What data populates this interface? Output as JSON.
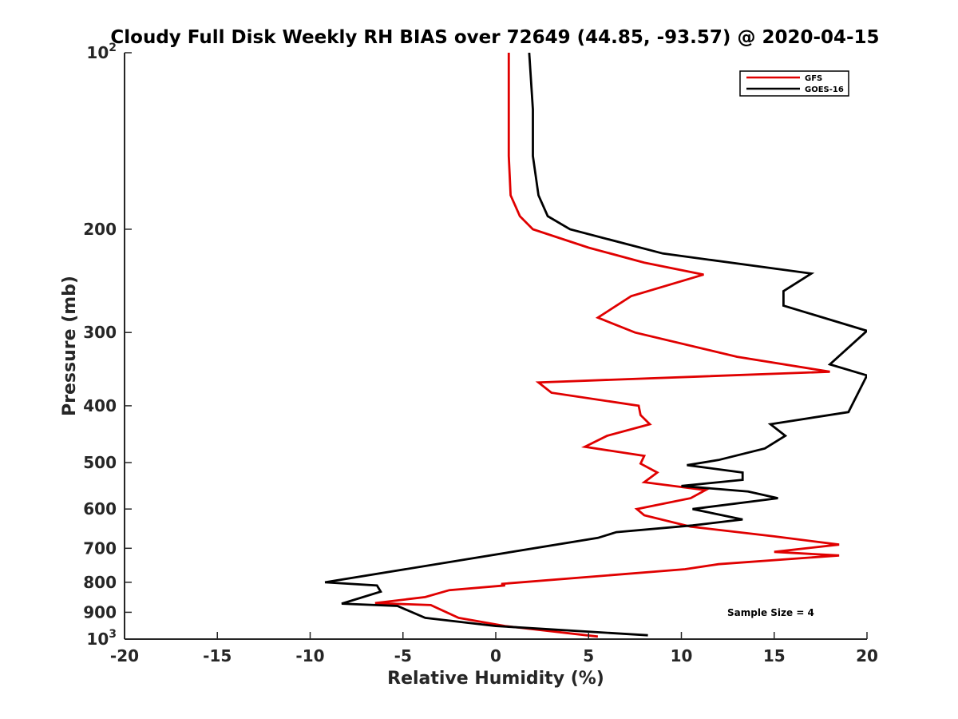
{
  "chart_data": {
    "type": "line",
    "title": "Cloudy Full Disk Weekly RH BIAS over 72649 (44.85, -93.57) @ 2020-04-15",
    "xlabel": "Relative Humidity (%)",
    "ylabel": "Pressure (mb)",
    "xlim": [
      -20,
      20
    ],
    "ylim": [
      100,
      1000
    ],
    "yscale": "log",
    "y_reversed": true,
    "x_ticks": [
      "-20",
      "-15",
      "-10",
      "-5",
      "0",
      "5",
      "10",
      "15",
      "20"
    ],
    "y_ticks": [
      {
        "value": 100,
        "base": "10",
        "exp": "2"
      },
      {
        "value": 200,
        "label": "200"
      },
      {
        "value": 300,
        "label": "300"
      },
      {
        "value": 400,
        "label": "400"
      },
      {
        "value": 500,
        "label": "500"
      },
      {
        "value": 600,
        "label": "600"
      },
      {
        "value": 700,
        "label": "700"
      },
      {
        "value": 800,
        "label": "800"
      },
      {
        "value": 900,
        "label": "900"
      },
      {
        "value": 1000,
        "base": "10",
        "exp": "3"
      }
    ],
    "annotation": "Sample Size = 4",
    "legend_position": "top-right",
    "series": [
      {
        "name": "GFS",
        "color": "#e00000",
        "points": [
          [
            0.7,
            100
          ],
          [
            0.7,
            125
          ],
          [
            0.7,
            150
          ],
          [
            0.8,
            175
          ],
          [
            1.3,
            190
          ],
          [
            2.0,
            200
          ],
          [
            5.0,
            215
          ],
          [
            8.0,
            228
          ],
          [
            11.2,
            239
          ],
          [
            7.3,
            260
          ],
          [
            5.5,
            283
          ],
          [
            7.5,
            300
          ],
          [
            13.0,
            330
          ],
          [
            18.0,
            350
          ],
          [
            2.3,
            365
          ],
          [
            3.0,
            380
          ],
          [
            7.7,
            400
          ],
          [
            7.8,
            415
          ],
          [
            8.3,
            430
          ],
          [
            6.0,
            450
          ],
          [
            4.8,
            470
          ],
          [
            8.0,
            487
          ],
          [
            7.8,
            502
          ],
          [
            8.7,
            520
          ],
          [
            8.0,
            540
          ],
          [
            11.3,
            557
          ],
          [
            10.5,
            575
          ],
          [
            7.6,
            600
          ],
          [
            8.0,
            615
          ],
          [
            10.5,
            643
          ],
          [
            15.0,
            668
          ],
          [
            18.5,
            690
          ],
          [
            15.0,
            710
          ],
          [
            18.5,
            720
          ],
          [
            12.0,
            745
          ],
          [
            10.2,
            760
          ],
          [
            0.3,
            805
          ],
          [
            0.5,
            810
          ],
          [
            -2.5,
            825
          ],
          [
            -3.8,
            848
          ],
          [
            -6.5,
            868
          ],
          [
            -3.5,
            875
          ],
          [
            -2.0,
            920
          ],
          [
            0.5,
            950
          ],
          [
            5.5,
            990
          ]
        ]
      },
      {
        "name": "GOES-16",
        "color": "#000000",
        "points": [
          [
            1.8,
            100
          ],
          [
            2.0,
            125
          ],
          [
            2.0,
            150
          ],
          [
            2.3,
            175
          ],
          [
            2.8,
            190
          ],
          [
            4.0,
            200
          ],
          [
            9.0,
            220
          ],
          [
            17.0,
            238
          ],
          [
            15.5,
            255
          ],
          [
            15.5,
            270
          ],
          [
            20.0,
            298
          ],
          [
            18.0,
            340
          ],
          [
            20.0,
            355
          ],
          [
            19.0,
            410
          ],
          [
            14.8,
            430
          ],
          [
            15.6,
            450
          ],
          [
            14.5,
            473
          ],
          [
            12.0,
            495
          ],
          [
            10.3,
            505
          ],
          [
            13.3,
            520
          ],
          [
            13.3,
            535
          ],
          [
            10.0,
            548
          ],
          [
            13.6,
            560
          ],
          [
            15.2,
            575
          ],
          [
            10.6,
            600
          ],
          [
            13.3,
            625
          ],
          [
            10.6,
            640
          ],
          [
            6.5,
            657
          ],
          [
            5.5,
            672
          ],
          [
            -9.2,
            800
          ],
          [
            -6.4,
            810
          ],
          [
            -6.2,
            830
          ],
          [
            -8.3,
            870
          ],
          [
            -5.3,
            878
          ],
          [
            -3.8,
            920
          ],
          [
            0.0,
            950
          ],
          [
            8.2,
            985
          ]
        ]
      }
    ]
  }
}
